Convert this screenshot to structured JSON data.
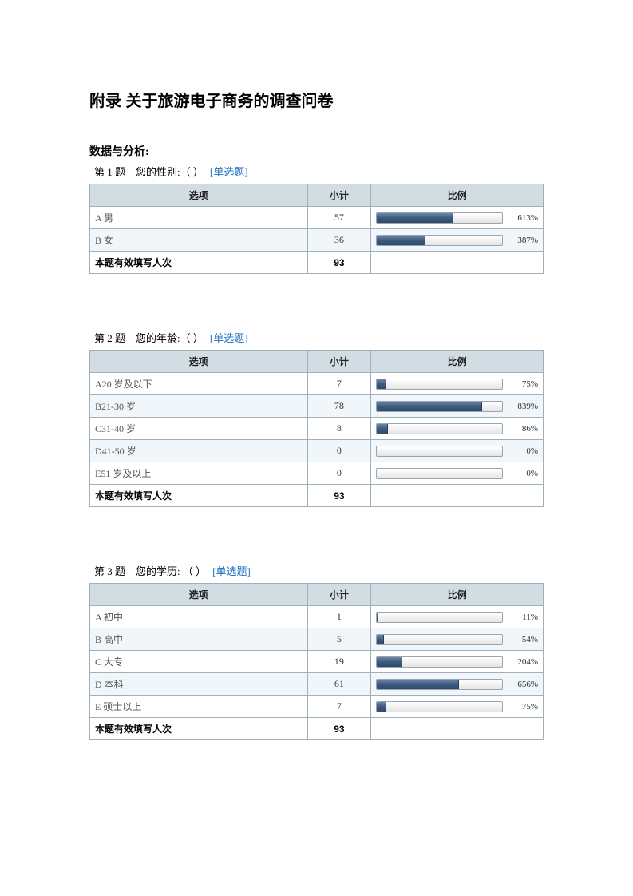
{
  "title": "附录  关于旅游电子商务的调查问卷",
  "section_label": "数据与分析:",
  "headers": {
    "option": "选项",
    "count": "小计",
    "ratio": "比例"
  },
  "total_label": "本题有效填写人次",
  "question_tag": "[单选题]",
  "colors": {
    "header_bg": "#d1dde2",
    "border": "#9fb0b8",
    "alt_row_bg": "#f1f6fa",
    "bar_fill_top": "#6a86a8",
    "bar_fill_mid": "#3d5a7e",
    "bar_fill_bot": "#2f4a6b",
    "link": "#1f6fbf"
  },
  "questions": [
    {
      "number": "第 1 题",
      "text": "您的性别:（     ）",
      "total": 93,
      "rows": [
        {
          "label": "A 男",
          "count": 57,
          "pct_label": "613%",
          "fill_pct": 61.3
        },
        {
          "label": "B 女",
          "count": 36,
          "pct_label": "387%",
          "fill_pct": 38.7
        }
      ]
    },
    {
      "number": "第 2 题",
      "text": "您的年龄:（     ）",
      "total": 93,
      "rows": [
        {
          "label": "A20 岁及以下",
          "count": 7,
          "pct_label": "75%",
          "fill_pct": 7.5
        },
        {
          "label": "B21-30 岁",
          "count": 78,
          "pct_label": "839%",
          "fill_pct": 83.9
        },
        {
          "label": "C31-40 岁",
          "count": 8,
          "pct_label": "86%",
          "fill_pct": 8.6
        },
        {
          "label": "D41-50 岁",
          "count": 0,
          "pct_label": "0%",
          "fill_pct": 0
        },
        {
          "label": "E51 岁及以上",
          "count": 0,
          "pct_label": "0%",
          "fill_pct": 0
        }
      ]
    },
    {
      "number": "第 3 题",
      "text": "您的学历: （     ）",
      "total": 93,
      "rows": [
        {
          "label": "A 初中",
          "count": 1,
          "pct_label": "11%",
          "fill_pct": 1.1
        },
        {
          "label": "B 高中",
          "count": 5,
          "pct_label": "54%",
          "fill_pct": 5.4
        },
        {
          "label": "C 大专",
          "count": 19,
          "pct_label": "204%",
          "fill_pct": 20.4
        },
        {
          "label": "D 本科",
          "count": 61,
          "pct_label": "656%",
          "fill_pct": 65.6
        },
        {
          "label": "E 硕士以上",
          "count": 7,
          "pct_label": "75%",
          "fill_pct": 7.5
        }
      ]
    }
  ]
}
